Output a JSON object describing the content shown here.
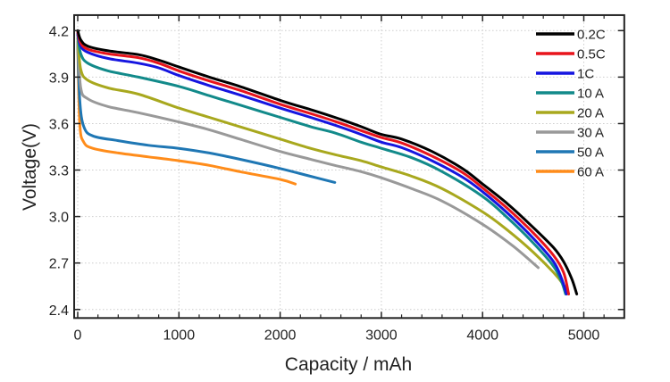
{
  "chart_data": {
    "type": "line",
    "title": "",
    "xlabel": "Capacity / mAh",
    "ylabel": "Voltage(V)",
    "xlim": [
      -35,
      5400
    ],
    "ylim": [
      2.345,
      4.3
    ],
    "xticks": [
      0,
      1000,
      2000,
      3000,
      4000,
      5000
    ],
    "xtick_labels": [
      "0",
      "1000",
      "2000",
      "3000",
      "4000",
      "5000"
    ],
    "yticks": [
      2.4,
      2.7,
      3.0,
      3.3,
      3.6,
      3.9,
      4.2
    ],
    "ytick_labels": [
      "2.4",
      "2.7",
      "3.0",
      "3.3",
      "3.6",
      "3.9",
      "4.2"
    ],
    "grid": true,
    "legend_position": "top-right",
    "series": [
      {
        "name": "0.2C",
        "color": "#000000",
        "points": [
          [
            0,
            4.2
          ],
          [
            30,
            4.14
          ],
          [
            100,
            4.1
          ],
          [
            300,
            4.07
          ],
          [
            600,
            4.045
          ],
          [
            800,
            4.01
          ],
          [
            1000,
            3.965
          ],
          [
            1300,
            3.9
          ],
          [
            1600,
            3.84
          ],
          [
            2000,
            3.75
          ],
          [
            2300,
            3.69
          ],
          [
            2540,
            3.64
          ],
          [
            2800,
            3.58
          ],
          [
            3000,
            3.53
          ],
          [
            3200,
            3.5
          ],
          [
            3500,
            3.42
          ],
          [
            3800,
            3.31
          ],
          [
            4000,
            3.21
          ],
          [
            4250,
            3.08
          ],
          [
            4500,
            2.93
          ],
          [
            4700,
            2.8
          ],
          [
            4800,
            2.71
          ],
          [
            4880,
            2.6
          ],
          [
            4930,
            2.5
          ]
        ]
      },
      {
        "name": "0.5C",
        "color": "#e8141c",
        "points": [
          [
            0,
            4.19
          ],
          [
            30,
            4.12
          ],
          [
            100,
            4.08
          ],
          [
            300,
            4.05
          ],
          [
            600,
            4.025
          ],
          [
            800,
            3.99
          ],
          [
            1000,
            3.94
          ],
          [
            1300,
            3.875
          ],
          [
            1600,
            3.815
          ],
          [
            2000,
            3.725
          ],
          [
            2300,
            3.665
          ],
          [
            2540,
            3.615
          ],
          [
            2800,
            3.555
          ],
          [
            3000,
            3.51
          ],
          [
            3200,
            3.475
          ],
          [
            3500,
            3.39
          ],
          [
            3800,
            3.285
          ],
          [
            4000,
            3.185
          ],
          [
            4250,
            3.05
          ],
          [
            4500,
            2.895
          ],
          [
            4700,
            2.75
          ],
          [
            4800,
            2.64
          ],
          [
            4850,
            2.5
          ]
        ]
      },
      {
        "name": "1C",
        "color": "#1515e0",
        "points": [
          [
            0,
            4.18
          ],
          [
            30,
            4.1
          ],
          [
            100,
            4.06
          ],
          [
            300,
            4.02
          ],
          [
            600,
            3.99
          ],
          [
            800,
            3.96
          ],
          [
            1000,
            3.91
          ],
          [
            1300,
            3.845
          ],
          [
            1600,
            3.785
          ],
          [
            2000,
            3.7
          ],
          [
            2300,
            3.64
          ],
          [
            2540,
            3.59
          ],
          [
            2800,
            3.53
          ],
          [
            3000,
            3.48
          ],
          [
            3200,
            3.445
          ],
          [
            3500,
            3.36
          ],
          [
            3800,
            3.255
          ],
          [
            4000,
            3.16
          ],
          [
            4250,
            3.02
          ],
          [
            4500,
            2.86
          ],
          [
            4700,
            2.71
          ],
          [
            4780,
            2.6
          ],
          [
            4830,
            2.5
          ]
        ]
      },
      {
        "name": "10 A",
        "color": "#128a8a",
        "points": [
          [
            0,
            4.17
          ],
          [
            30,
            4.05
          ],
          [
            100,
            3.99
          ],
          [
            300,
            3.94
          ],
          [
            600,
            3.9
          ],
          [
            1000,
            3.84
          ],
          [
            1300,
            3.78
          ],
          [
            1600,
            3.72
          ],
          [
            2000,
            3.64
          ],
          [
            2300,
            3.58
          ],
          [
            2540,
            3.54
          ],
          [
            2800,
            3.48
          ],
          [
            3000,
            3.44
          ],
          [
            3300,
            3.38
          ],
          [
            3600,
            3.29
          ],
          [
            4000,
            3.13
          ],
          [
            4250,
            2.99
          ],
          [
            4500,
            2.83
          ],
          [
            4700,
            2.68
          ],
          [
            4780,
            2.58
          ],
          [
            4820,
            2.5
          ]
        ]
      },
      {
        "name": "20 A",
        "color": "#a8a81e",
        "points": [
          [
            0,
            4.15
          ],
          [
            30,
            3.95
          ],
          [
            100,
            3.88
          ],
          [
            300,
            3.83
          ],
          [
            600,
            3.79
          ],
          [
            1000,
            3.7
          ],
          [
            1300,
            3.64
          ],
          [
            1600,
            3.58
          ],
          [
            2000,
            3.5
          ],
          [
            2300,
            3.44
          ],
          [
            2540,
            3.4
          ],
          [
            2800,
            3.36
          ],
          [
            3000,
            3.32
          ],
          [
            3300,
            3.26
          ],
          [
            3600,
            3.18
          ],
          [
            4000,
            3.03
          ],
          [
            4250,
            2.91
          ],
          [
            4500,
            2.77
          ],
          [
            4700,
            2.64
          ],
          [
            4800,
            2.56
          ],
          [
            4850,
            2.5
          ]
        ]
      },
      {
        "name": "30 A",
        "color": "#999999",
        "points": [
          [
            0,
            4.13
          ],
          [
            30,
            3.83
          ],
          [
            100,
            3.76
          ],
          [
            300,
            3.71
          ],
          [
            600,
            3.67
          ],
          [
            1000,
            3.61
          ],
          [
            1300,
            3.56
          ],
          [
            1600,
            3.5
          ],
          [
            2000,
            3.42
          ],
          [
            2300,
            3.37
          ],
          [
            2540,
            3.33
          ],
          [
            2800,
            3.29
          ],
          [
            3000,
            3.25
          ],
          [
            3300,
            3.18
          ],
          [
            3600,
            3.1
          ],
          [
            4000,
            2.95
          ],
          [
            4300,
            2.81
          ],
          [
            4550,
            2.67
          ]
        ]
      },
      {
        "name": "50 A",
        "color": "#1f77b4",
        "points": [
          [
            0,
            4.12
          ],
          [
            20,
            3.75
          ],
          [
            60,
            3.58
          ],
          [
            150,
            3.52
          ],
          [
            400,
            3.49
          ],
          [
            700,
            3.46
          ],
          [
            1000,
            3.44
          ],
          [
            1300,
            3.41
          ],
          [
            1600,
            3.37
          ],
          [
            2000,
            3.31
          ],
          [
            2300,
            3.26
          ],
          [
            2540,
            3.22
          ]
        ]
      },
      {
        "name": "60 A",
        "color": "#ff8c1a",
        "points": [
          [
            0,
            4.1
          ],
          [
            20,
            3.6
          ],
          [
            60,
            3.48
          ],
          [
            150,
            3.44
          ],
          [
            400,
            3.41
          ],
          [
            700,
            3.385
          ],
          [
            1000,
            3.36
          ],
          [
            1300,
            3.33
          ],
          [
            1600,
            3.29
          ],
          [
            2000,
            3.24
          ],
          [
            2150,
            3.21
          ]
        ]
      }
    ]
  }
}
